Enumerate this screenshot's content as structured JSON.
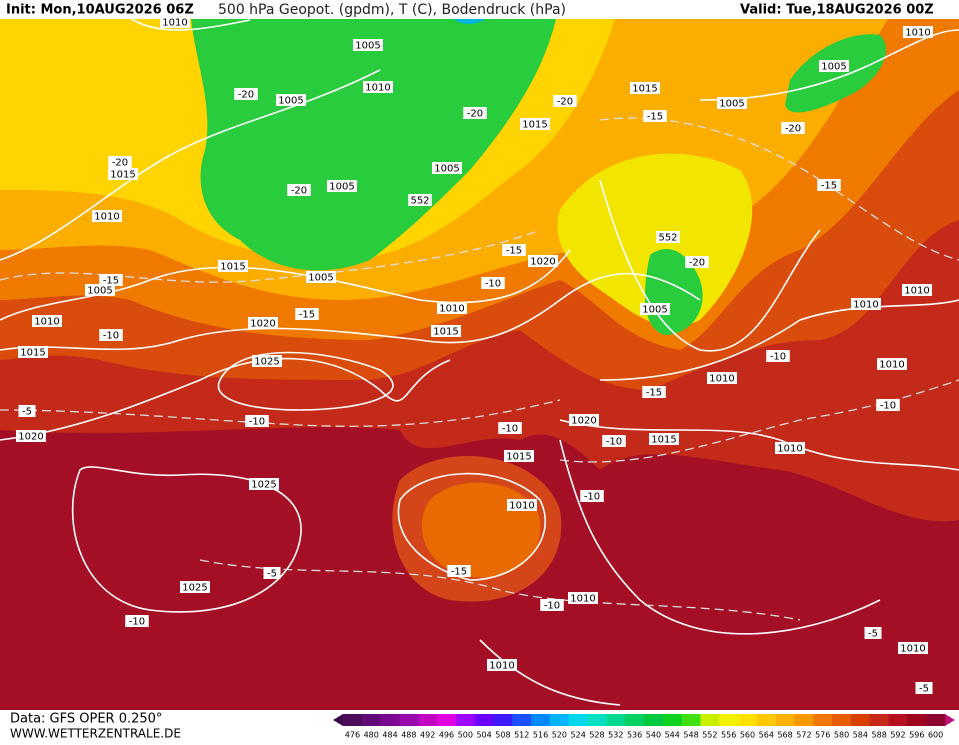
{
  "header": {
    "init": "Init: Mon,10AUG2026 06Z",
    "title": "500 hPa Geopot. (gpdm), T (C), Bodendruck (hPa)",
    "valid": "Valid: Tue,18AUG2026 00Z"
  },
  "labels": [
    "1010",
    "1005",
    "1010",
    "1005",
    "-20",
    "1005",
    "1010",
    "1015",
    "-20",
    "1005",
    "-20",
    "1015",
    "-15",
    "-20",
    "-20",
    "1015",
    "1005",
    "1005",
    "552",
    "-20",
    "-15",
    "1010",
    "552",
    "-20",
    "-15",
    "1020",
    "1015",
    "1005",
    "-15",
    "1005",
    "-10",
    "1010",
    "1005",
    "1010",
    "1010",
    "-15",
    "1010",
    "1020",
    "-10",
    "1015",
    "1015",
    "-10",
    "1010",
    "1025",
    "1010",
    "-15",
    "-10",
    "-5",
    "-10",
    "1020",
    "-10",
    "-10",
    "1015",
    "1020",
    "1010",
    "1015",
    "1025",
    "-10",
    "1010",
    "-15",
    "-5",
    "1025",
    "1010",
    "-10",
    "-10",
    "-5",
    "1010",
    "1010",
    "-5"
  ],
  "footer": {
    "data": "Data: GFS OPER 0.250°",
    "site": "WWW.WETTERZENTRALE.DE"
  },
  "colorbar": {
    "values": [
      476,
      480,
      484,
      488,
      492,
      496,
      500,
      504,
      508,
      512,
      516,
      520,
      524,
      528,
      532,
      536,
      540,
      544,
      548,
      552,
      556,
      560,
      564,
      568,
      572,
      576,
      580,
      584,
      588,
      592,
      596,
      600
    ],
    "colors": [
      "#4b0a5a",
      "#5e0a78",
      "#7a0891",
      "#9a0aa8",
      "#c000c0",
      "#e000e0",
      "#a000ff",
      "#6a00ff",
      "#3c1cff",
      "#1e50ff",
      "#0088ff",
      "#00b4ff",
      "#00d8f0",
      "#00e0c0",
      "#00d890",
      "#00d060",
      "#00c840",
      "#10d020",
      "#40e010",
      "#c8f000",
      "#f0f000",
      "#ffe000",
      "#ffc800",
      "#ffb000",
      "#ff9800",
      "#f07800",
      "#e85c00",
      "#d84000",
      "#c82818",
      "#b41020",
      "#a00020",
      "#8c0030"
    ]
  }
}
